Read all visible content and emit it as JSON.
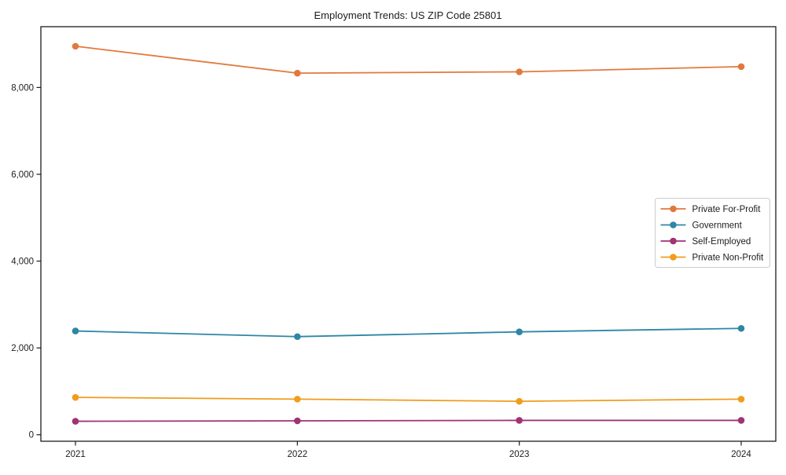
{
  "figure": {
    "title": "Employment Trends: US ZIP Code 25801"
  },
  "chart_data": {
    "type": "line",
    "title": "Employment Trends: US ZIP Code 25801",
    "x": [
      2021,
      2022,
      2023,
      2024
    ],
    "x_tick_labels": [
      "2021",
      "2022",
      "2023",
      "2024"
    ],
    "series": [
      {
        "name": "Private For-Profit",
        "color": "#e1793e",
        "values": [
          8950,
          8330,
          8360,
          8480
        ]
      },
      {
        "name": "Government",
        "color": "#2e86a5",
        "values": [
          2390,
          2260,
          2370,
          2450
        ]
      },
      {
        "name": "Self-Employed",
        "color": "#a03373",
        "values": [
          310,
          320,
          330,
          330
        ]
      },
      {
        "name": "Private Non-Profit",
        "color": "#f09c1c",
        "values": [
          860,
          820,
          770,
          820
        ]
      }
    ],
    "xlabel": "",
    "ylabel": "",
    "ylim": [
      -150,
      9400
    ],
    "yticks": [
      0,
      2000,
      4000,
      6000,
      8000
    ],
    "ytick_labels": [
      "0",
      "2,000",
      "4,000",
      "6,000",
      "8,000"
    ],
    "grid": false,
    "legend_position": "center-right",
    "marker": "circle",
    "frame_color": "#1c1c1c",
    "legend_border_color": "#cccccc",
    "background_color": "#ffffff"
  }
}
